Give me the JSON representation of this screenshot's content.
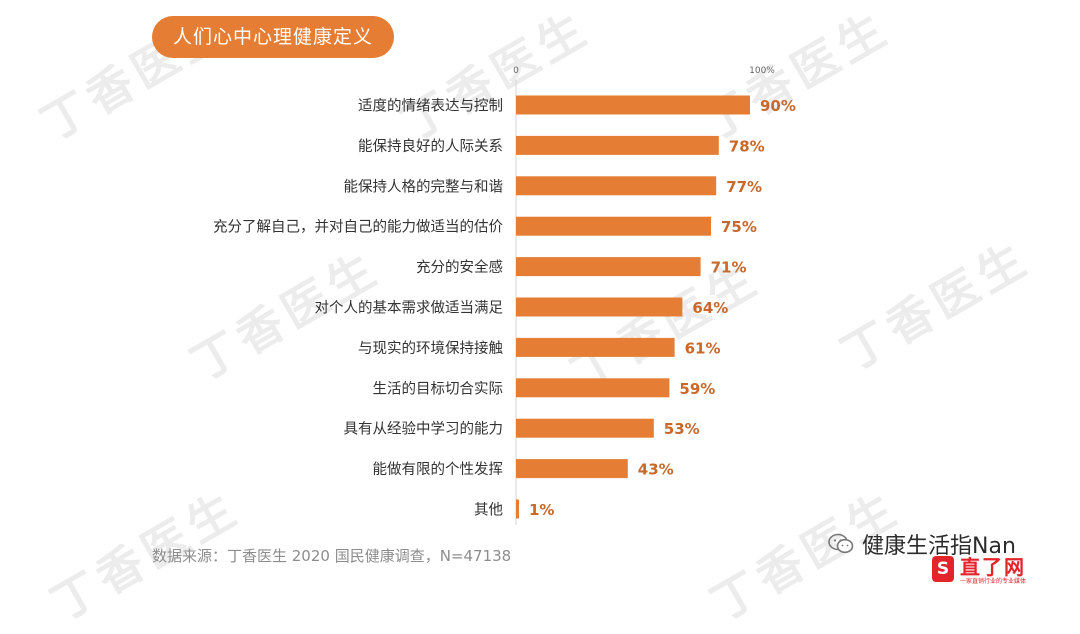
{
  "header": {
    "title": "人们心中心理健康定义"
  },
  "watermark": {
    "text": "丁香医生"
  },
  "chart_data": {
    "type": "bar",
    "orientation": "horizontal",
    "title": "人们心中心理健康定义",
    "xlim": [
      0,
      100
    ],
    "axis_ticks": [
      "0",
      "100%"
    ],
    "categories": [
      "适度的情绪表达与控制",
      "能保持良好的人际关系",
      "能保持人格的完整与和谐",
      "充分了解自己，并对自己的能力做适当的估价",
      "充分的安全感",
      "对个人的基本需求做适当满足",
      "与现实的环境保持接触",
      "生活的目标切合实际",
      "具有从经验中学习的能力",
      "能做有限的个性发挥",
      "其他"
    ],
    "values": [
      90,
      78,
      77,
      75,
      71,
      64,
      61,
      59,
      53,
      43,
      1
    ],
    "value_labels": [
      "90%",
      "78%",
      "77%",
      "75%",
      "71%",
      "64%",
      "61%",
      "59%",
      "53%",
      "43%",
      "1%"
    ],
    "bar_color": "#e57d34",
    "label_color": "#c8692b"
  },
  "source": "数据来源：丁香医生 2020 国民健康调查，N=47138",
  "wechat": {
    "name": "健康生活指Nan",
    "icon": "wechat-icon"
  },
  "site_logo": {
    "badge": "S",
    "name": "直了网",
    "slogan": "一家直销行业的专业媒体"
  }
}
